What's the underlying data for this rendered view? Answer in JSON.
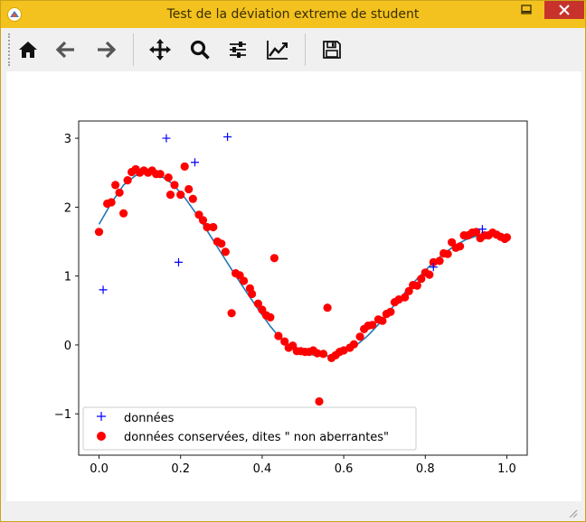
{
  "window": {
    "title": "Test de la déviation extreme de student"
  },
  "toolbar": {
    "buttons": [
      {
        "name": "home-button",
        "icon": "home-icon"
      },
      {
        "name": "back-button",
        "icon": "arrow-left-icon"
      },
      {
        "name": "forward-button",
        "icon": "arrow-right-icon"
      },
      {
        "name": "pan-button",
        "icon": "move-icon"
      },
      {
        "name": "zoom-button",
        "icon": "magnifier-icon"
      },
      {
        "name": "subplots-button",
        "icon": "sliders-icon"
      },
      {
        "name": "edit-axes-button",
        "icon": "chart-icon"
      },
      {
        "name": "save-button",
        "icon": "floppy-disk-icon"
      }
    ]
  },
  "chart_data": {
    "type": "scatter",
    "xlim": [
      -0.05,
      1.05
    ],
    "ylim": [
      -1.6,
      3.25
    ],
    "x_ticks": [
      "0.0",
      "0.2",
      "0.4",
      "0.6",
      "0.8",
      "1.0"
    ],
    "y_ticks": [
      "−1",
      "0",
      "1",
      "2",
      "3"
    ],
    "x_tick_values": [
      0.0,
      0.2,
      0.4,
      0.6,
      0.8,
      1.0
    ],
    "y_tick_values": [
      -1,
      0,
      1,
      2,
      3
    ],
    "legend": {
      "placement": "lower-left",
      "entries": [
        "données",
        "données conservées, dites \" non aberrantes\""
      ]
    },
    "series": [
      {
        "name": "données",
        "marker": "+",
        "color": "#0000ff",
        "points": [
          [
            0.01,
            0.8
          ],
          [
            0.165,
            3.0
          ],
          [
            0.195,
            1.2
          ],
          [
            0.235,
            2.65
          ],
          [
            0.315,
            3.02
          ],
          [
            0.82,
            1.13
          ],
          [
            0.94,
            1.68
          ]
        ]
      },
      {
        "name": "données conservées, dites \" non aberrantes\"",
        "marker": "o",
        "color": "#ff0000",
        "points": [
          [
            0.0,
            1.64
          ],
          [
            0.02,
            2.05
          ],
          [
            0.03,
            2.07
          ],
          [
            0.04,
            2.32
          ],
          [
            0.05,
            2.21
          ],
          [
            0.06,
            1.91
          ],
          [
            0.07,
            2.39
          ],
          [
            0.08,
            2.51
          ],
          [
            0.09,
            2.55
          ],
          [
            0.1,
            2.5
          ],
          [
            0.11,
            2.53
          ],
          [
            0.12,
            2.5
          ],
          [
            0.13,
            2.53
          ],
          [
            0.14,
            2.48
          ],
          [
            0.15,
            2.48
          ],
          [
            0.17,
            2.43
          ],
          [
            0.175,
            2.18
          ],
          [
            0.185,
            2.32
          ],
          [
            0.2,
            2.18
          ],
          [
            0.21,
            2.59
          ],
          [
            0.22,
            2.26
          ],
          [
            0.23,
            2.12
          ],
          [
            0.245,
            1.89
          ],
          [
            0.255,
            1.81
          ],
          [
            0.265,
            1.71
          ],
          [
            0.28,
            1.71
          ],
          [
            0.29,
            1.5
          ],
          [
            0.3,
            1.47
          ],
          [
            0.31,
            1.35
          ],
          [
            0.325,
            0.46
          ],
          [
            0.335,
            1.04
          ],
          [
            0.345,
            1.01
          ],
          [
            0.355,
            0.93
          ],
          [
            0.37,
            0.82
          ],
          [
            0.375,
            0.74
          ],
          [
            0.39,
            0.6
          ],
          [
            0.4,
            0.51
          ],
          [
            0.41,
            0.43
          ],
          [
            0.42,
            0.4
          ],
          [
            0.43,
            1.26
          ],
          [
            0.44,
            0.13
          ],
          [
            0.455,
            0.05
          ],
          [
            0.465,
            -0.04
          ],
          [
            0.475,
            -0.01
          ],
          [
            0.485,
            -0.09
          ],
          [
            0.495,
            -0.09
          ],
          [
            0.505,
            -0.1
          ],
          [
            0.515,
            -0.1
          ],
          [
            0.525,
            -0.08
          ],
          [
            0.535,
            -0.12
          ],
          [
            0.54,
            -0.82
          ],
          [
            0.55,
            -0.13
          ],
          [
            0.56,
            0.54
          ],
          [
            0.57,
            -0.19
          ],
          [
            0.58,
            -0.15
          ],
          [
            0.59,
            -0.1
          ],
          [
            0.6,
            -0.08
          ],
          [
            0.615,
            -0.04
          ],
          [
            0.625,
            0.01
          ],
          [
            0.64,
            0.12
          ],
          [
            0.65,
            0.23
          ],
          [
            0.66,
            0.28
          ],
          [
            0.67,
            0.29
          ],
          [
            0.685,
            0.37
          ],
          [
            0.695,
            0.35
          ],
          [
            0.705,
            0.45
          ],
          [
            0.715,
            0.48
          ],
          [
            0.725,
            0.62
          ],
          [
            0.735,
            0.66
          ],
          [
            0.75,
            0.69
          ],
          [
            0.76,
            0.78
          ],
          [
            0.77,
            0.87
          ],
          [
            0.78,
            0.86
          ],
          [
            0.79,
            0.96
          ],
          [
            0.8,
            1.05
          ],
          [
            0.81,
            1.02
          ],
          [
            0.82,
            1.2
          ],
          [
            0.835,
            1.22
          ],
          [
            0.845,
            1.33
          ],
          [
            0.855,
            1.32
          ],
          [
            0.865,
            1.49
          ],
          [
            0.875,
            1.41
          ],
          [
            0.885,
            1.43
          ],
          [
            0.895,
            1.59
          ],
          [
            0.905,
            1.59
          ],
          [
            0.915,
            1.63
          ],
          [
            0.925,
            1.64
          ],
          [
            0.935,
            1.55
          ],
          [
            0.945,
            1.59
          ],
          [
            0.955,
            1.59
          ],
          [
            0.965,
            1.63
          ],
          [
            0.975,
            1.6
          ],
          [
            0.985,
            1.57
          ],
          [
            0.995,
            1.54
          ],
          [
            1.0,
            1.56
          ]
        ]
      },
      {
        "name": "",
        "marker": "line",
        "color": "#1f77b4",
        "points": [
          [
            0.0,
            1.75
          ],
          [
            0.03,
            2.06
          ],
          [
            0.06,
            2.32
          ],
          [
            0.09,
            2.46
          ],
          [
            0.12,
            2.5
          ],
          [
            0.15,
            2.46
          ],
          [
            0.18,
            2.34
          ],
          [
            0.21,
            2.14
          ],
          [
            0.24,
            1.89
          ],
          [
            0.27,
            1.61
          ],
          [
            0.3,
            1.33
          ],
          [
            0.33,
            1.05
          ],
          [
            0.36,
            0.78
          ],
          [
            0.39,
            0.52
          ],
          [
            0.42,
            0.27
          ],
          [
            0.45,
            0.06
          ],
          [
            0.48,
            -0.07
          ],
          [
            0.51,
            -0.13
          ],
          [
            0.54,
            -0.16
          ],
          [
            0.57,
            -0.16
          ],
          [
            0.6,
            -0.11
          ],
          [
            0.63,
            -0.01
          ],
          [
            0.66,
            0.14
          ],
          [
            0.69,
            0.33
          ],
          [
            0.72,
            0.55
          ],
          [
            0.75,
            0.76
          ],
          [
            0.78,
            0.96
          ],
          [
            0.81,
            1.14
          ],
          [
            0.84,
            1.3
          ],
          [
            0.87,
            1.43
          ],
          [
            0.9,
            1.53
          ],
          [
            0.93,
            1.59
          ],
          [
            0.96,
            1.61
          ],
          [
            0.98,
            1.59
          ],
          [
            1.0,
            1.55
          ]
        ]
      }
    ]
  }
}
